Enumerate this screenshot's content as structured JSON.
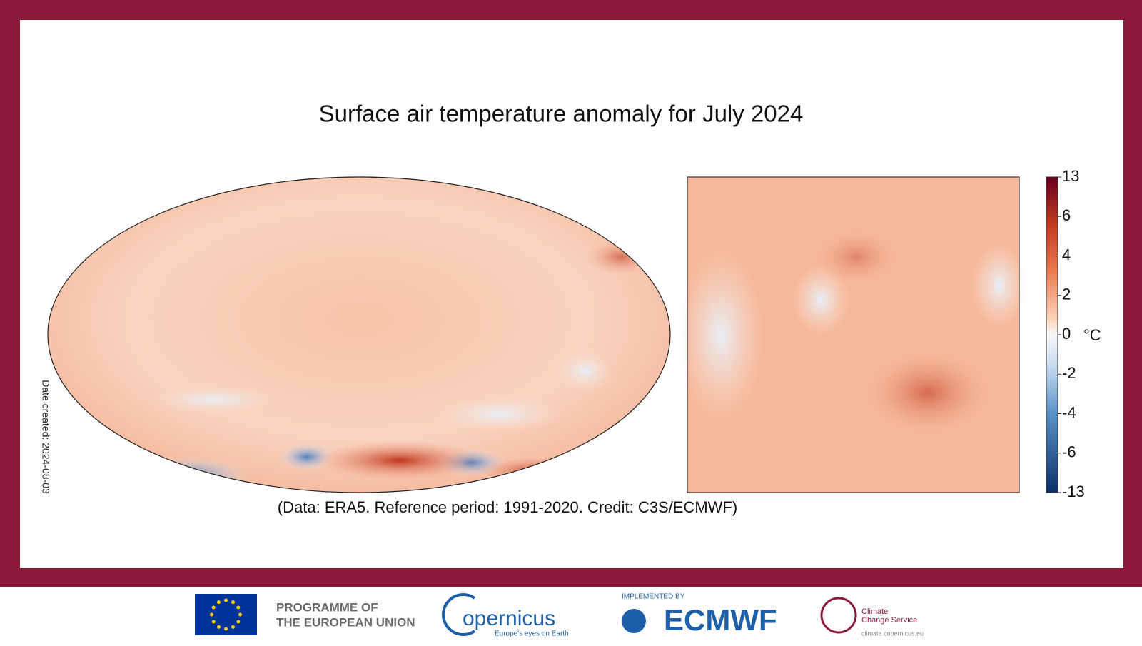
{
  "header": {
    "title": "Surface air temperature anomaly for July 2024"
  },
  "caption": "(Data: ERA5.  Reference period: 1991-2020.  Credit: C3S/ECMWF)",
  "date_created": "Date created: 2024-08-03",
  "colorbar": {
    "ticks": [
      13,
      6,
      4,
      2,
      0,
      -2,
      -4,
      -6,
      -13
    ],
    "unit": "°C"
  },
  "footer": {
    "eu_line1": "PROGRAMME OF",
    "eu_line2": "THE EUROPEAN UNION",
    "copernicus": "opernicus",
    "copernicus_tagline": "Europe's eyes on Earth",
    "implemented_by": "IMPLEMENTED BY",
    "ecmwf": "ECMWF",
    "c3s_line1": "Climate",
    "c3s_line2": "Change Service",
    "c3s_url": "climate.copernicus.eu"
  }
}
